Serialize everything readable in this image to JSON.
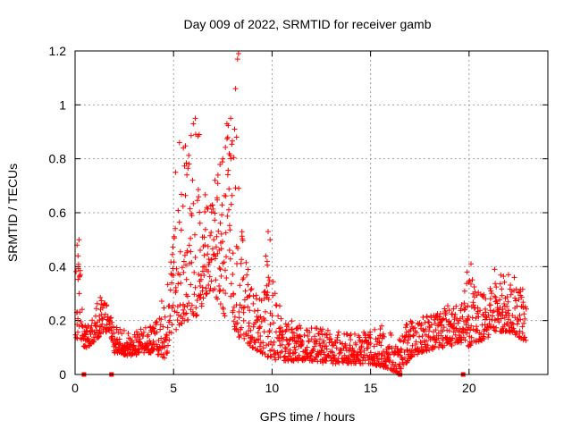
{
  "chart_data": {
    "type": "scatter",
    "title": "Day 009 of 2022, SRMTID for receiver gamb",
    "xlabel": "GPS time / hours",
    "ylabel": "SRMTID / TECUs",
    "xlim": [
      0,
      24
    ],
    "ylim": [
      0,
      1.2
    ],
    "x_ticks": [
      "0",
      "5",
      "10",
      "15",
      "20"
    ],
    "x_tick_values": [
      0,
      5,
      10,
      15,
      20
    ],
    "y_ticks": [
      "0",
      "0.2",
      "0.4",
      "0.6",
      "0.8",
      "1",
      "1.2"
    ],
    "y_tick_values": [
      0,
      0.2,
      0.4,
      0.6,
      0.8,
      1.0,
      1.2
    ],
    "grid": true,
    "marker": "plus",
    "color": "#ff0000",
    "series": [
      {
        "name": "SRMTID",
        "profile_x": [
          0.0,
          0.2,
          0.4,
          0.6,
          0.8,
          1.0,
          1.2,
          1.5,
          1.8,
          2.0,
          2.3,
          2.6,
          3.0,
          3.4,
          3.8,
          4.2,
          4.6,
          5.0,
          5.3,
          5.6,
          5.9,
          6.2,
          6.5,
          6.8,
          7.1,
          7.4,
          7.7,
          8.0,
          8.3,
          8.6,
          9.0,
          9.4,
          9.8,
          10.2,
          10.6,
          11.0,
          11.5,
          12.0,
          12.5,
          13.0,
          13.5,
          14.0,
          14.5,
          15.0,
          15.5,
          16.0,
          16.3,
          16.6,
          17.0,
          17.5,
          18.0,
          18.5,
          19.0,
          19.5,
          20.0,
          20.5,
          21.0,
          21.5,
          22.0,
          22.5,
          22.9
        ],
        "profile_low": [
          0.12,
          0.14,
          0.1,
          0.1,
          0.11,
          0.12,
          0.14,
          0.16,
          0.15,
          0.08,
          0.08,
          0.07,
          0.07,
          0.08,
          0.08,
          0.07,
          0.06,
          0.15,
          0.18,
          0.2,
          0.2,
          0.22,
          0.25,
          0.3,
          0.3,
          0.25,
          0.2,
          0.18,
          0.14,
          0.12,
          0.1,
          0.08,
          0.06,
          0.05,
          0.05,
          0.05,
          0.05,
          0.05,
          0.04,
          0.04,
          0.04,
          0.04,
          0.04,
          0.04,
          0.03,
          0.02,
          0.0,
          0.02,
          0.06,
          0.08,
          0.09,
          0.1,
          0.1,
          0.12,
          0.1,
          0.12,
          0.14,
          0.16,
          0.16,
          0.14,
          0.12
        ],
        "profile_high": [
          0.5,
          0.48,
          0.22,
          0.2,
          0.2,
          0.22,
          0.3,
          0.28,
          0.22,
          0.18,
          0.17,
          0.16,
          0.16,
          0.17,
          0.19,
          0.22,
          0.35,
          0.5,
          0.7,
          0.86,
          0.9,
          0.93,
          0.7,
          0.6,
          0.7,
          0.8,
          0.95,
          0.92,
          0.7,
          0.45,
          0.32,
          0.28,
          0.52,
          0.3,
          0.22,
          0.2,
          0.19,
          0.18,
          0.17,
          0.16,
          0.16,
          0.16,
          0.16,
          0.16,
          0.18,
          0.18,
          0.16,
          0.18,
          0.2,
          0.21,
          0.22,
          0.23,
          0.26,
          0.25,
          0.38,
          0.3,
          0.32,
          0.38,
          0.36,
          0.34,
          0.3
        ],
        "outliers": [
          {
            "x": 0.1,
            "y": 0.48
          },
          {
            "x": 0.2,
            "y": 0.5
          },
          {
            "x": 0.15,
            "y": 0.44
          },
          {
            "x": 5.1,
            "y": 0.75
          },
          {
            "x": 5.3,
            "y": 0.86
          },
          {
            "x": 5.5,
            "y": 0.84
          },
          {
            "x": 6.0,
            "y": 0.93
          },
          {
            "x": 6.1,
            "y": 0.95
          },
          {
            "x": 6.3,
            "y": 0.89
          },
          {
            "x": 7.1,
            "y": 0.72
          },
          {
            "x": 7.5,
            "y": 0.8
          },
          {
            "x": 7.9,
            "y": 0.95
          },
          {
            "x": 8.1,
            "y": 0.91
          },
          {
            "x": 8.2,
            "y": 0.88
          },
          {
            "x": 8.15,
            "y": 1.06
          },
          {
            "x": 8.25,
            "y": 1.17
          },
          {
            "x": 8.3,
            "y": 1.19
          },
          {
            "x": 9.8,
            "y": 0.53
          },
          {
            "x": 9.9,
            "y": 0.5
          },
          {
            "x": 19.9,
            "y": 0.38
          },
          {
            "x": 20.1,
            "y": 0.41
          },
          {
            "x": 21.3,
            "y": 0.39
          },
          {
            "x": 22.0,
            "y": 0.37
          },
          {
            "x": 22.3,
            "y": 0.36
          }
        ],
        "zero_markers_x": [
          0.45,
          1.85,
          16.5,
          19.7
        ]
      }
    ]
  }
}
